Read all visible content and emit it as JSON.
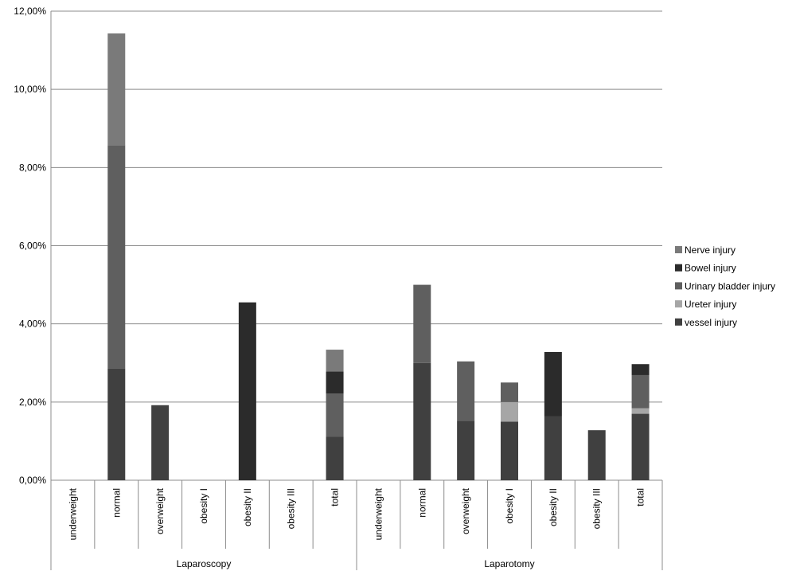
{
  "chart_data": {
    "type": "bar",
    "stacked": true,
    "y_ticks": [
      "0,00%",
      "2,00%",
      "4,00%",
      "6,00%",
      "8,00%",
      "10,00%",
      "12,00%"
    ],
    "ylim": [
      0,
      12
    ],
    "grid": true,
    "legend_position": "right",
    "groups": [
      {
        "label": "Laparoscopy",
        "categories": [
          "underweight",
          "normal",
          "overweight",
          "obesity I",
          "obesity II",
          "obesity III",
          "total"
        ]
      },
      {
        "label": "Laparotomy",
        "categories": [
          "underweight",
          "normal",
          "overweight",
          "obesity I",
          "obesity II",
          "obesity III",
          "total"
        ]
      }
    ],
    "categories": [
      "underweight",
      "normal",
      "overweight",
      "obesity I",
      "obesity II",
      "obesity III",
      "total",
      "underweight",
      "normal",
      "overweight",
      "obesity I",
      "obesity II",
      "obesity III",
      "total"
    ],
    "series": [
      {
        "name": "vessel injury",
        "color": "#404040",
        "values": [
          0,
          2.86,
          1.92,
          0,
          0,
          0,
          1.11,
          0,
          3.0,
          1.52,
          1.5,
          1.64,
          1.28,
          1.7
        ]
      },
      {
        "name": "Ureter injury",
        "color": "#a6a6a6",
        "values": [
          0,
          0,
          0,
          0,
          0,
          0,
          0,
          0,
          0,
          0,
          0.5,
          0,
          0,
          0.14
        ]
      },
      {
        "name": "Urinary bladder injury",
        "color": "#5f5f5f",
        "values": [
          0,
          5.71,
          0,
          0,
          0,
          0,
          1.11,
          0,
          2.0,
          1.52,
          0.5,
          0,
          0,
          0.85
        ]
      },
      {
        "name": "Bowel injury",
        "color": "#2b2b2b",
        "values": [
          0,
          0,
          0,
          0,
          4.55,
          0,
          0.56,
          0,
          0,
          0,
          0,
          1.64,
          0,
          0.28
        ]
      },
      {
        "name": "Nerve injury",
        "color": "#7a7a7a",
        "values": [
          0,
          2.86,
          0,
          0,
          0,
          0,
          0.56,
          0,
          0,
          0,
          0,
          0,
          0,
          0
        ]
      }
    ],
    "legend_order": [
      "Nerve injury",
      "Bowel injury",
      "Urinary bladder injury",
      "Ureter injury",
      "vessel injury"
    ]
  }
}
